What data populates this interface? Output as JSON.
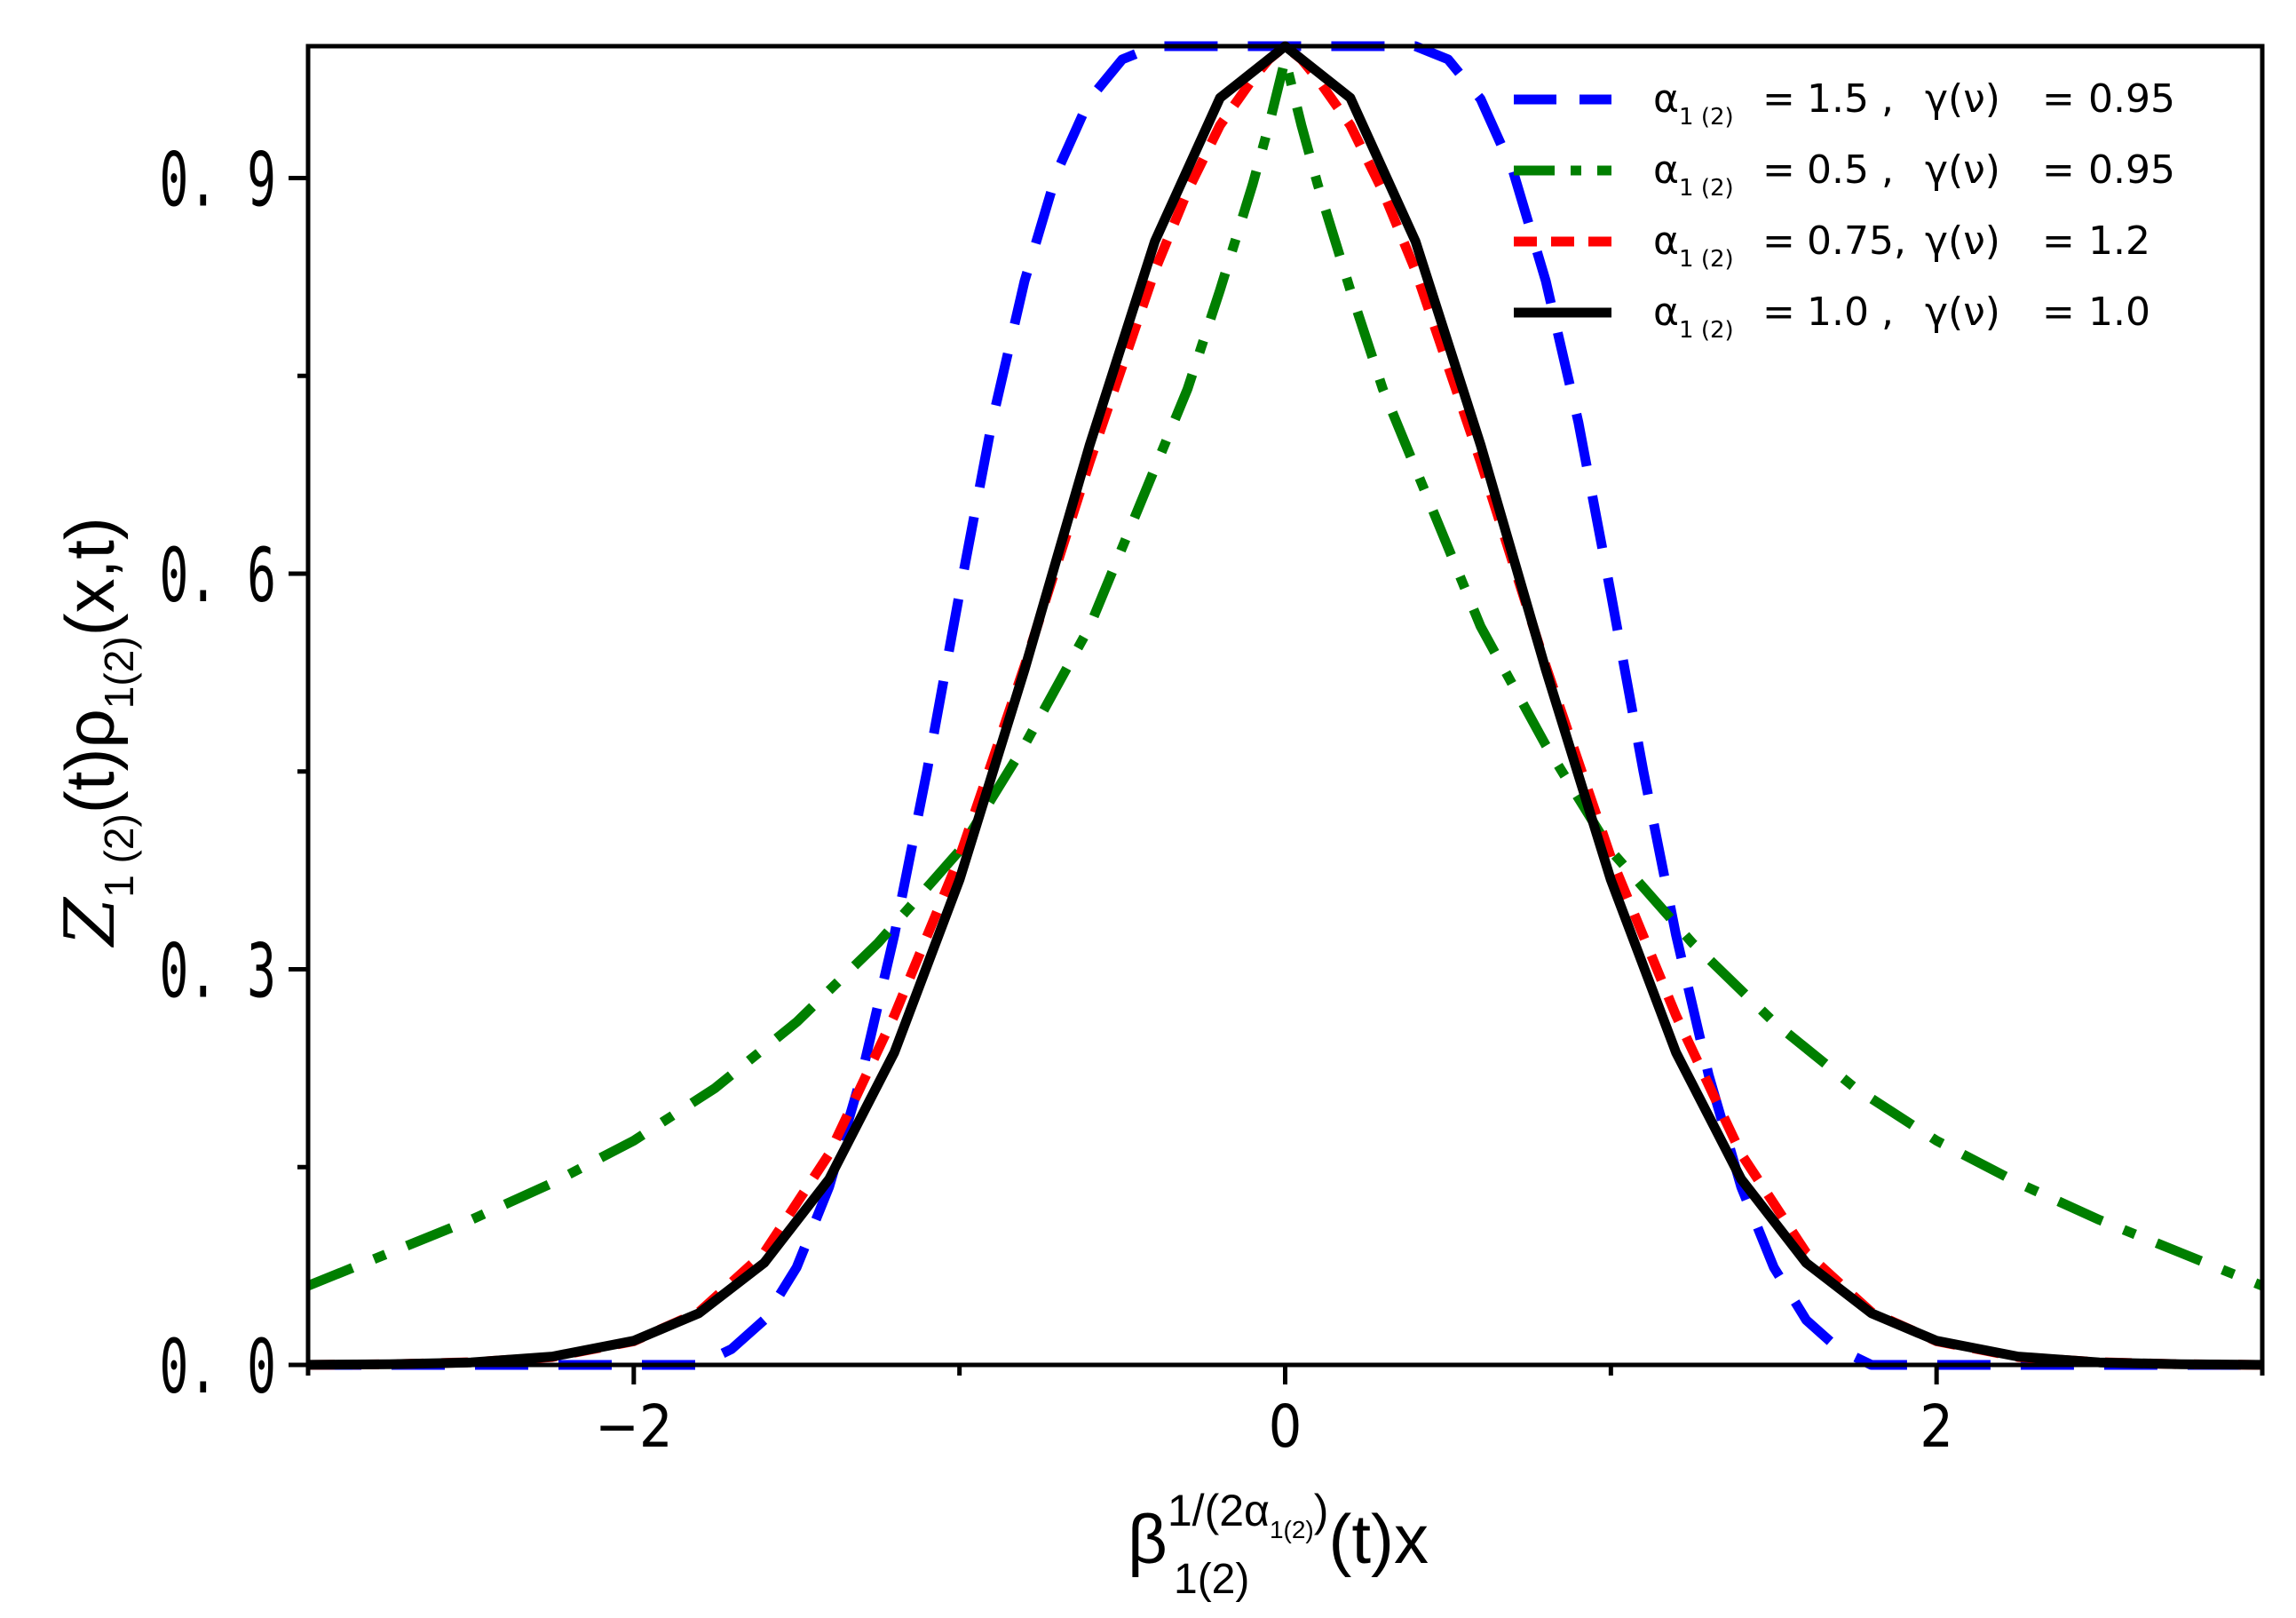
{
  "chart_data": {
    "type": "line",
    "title": "",
    "xlabel": {
      "base": "β",
      "sub": "1(2)",
      "sup_prefix": "1/(2α",
      "sup_sub": "1(2)",
      "sup_suffix": ")",
      "suffix": "(t)x"
    },
    "ylabel": {
      "z": "Z",
      "z_sub": "1 (2)",
      "t": "(t)",
      "rho": "ρ",
      "rho_sub": "1(2)",
      "suffix": "(x,t)"
    },
    "xlim": [
      -3,
      3
    ],
    "ylim": [
      0,
      1.0
    ],
    "x_ticks": [
      {
        "value": -2,
        "label": "−2"
      },
      {
        "value": 0,
        "label": "0"
      },
      {
        "value": 2,
        "label": "2"
      }
    ],
    "y_ticks": [
      {
        "value": 0.0,
        "label": "0. 0"
      },
      {
        "value": 0.3,
        "label": "0. 3"
      },
      {
        "value": 0.6,
        "label": "0. 6"
      },
      {
        "value": 0.9,
        "label": "0. 9"
      }
    ],
    "x_minor_ticks": [
      -3,
      -1,
      1,
      3
    ],
    "y_minor_ticks": [
      0.15,
      0.45,
      0.75
    ],
    "legend_position": "top-right",
    "series": [
      {
        "name": "α 1(2) = 1.5 , γ(ν) = 0.95",
        "alpha_value": "1.5 ,",
        "gamma_value": "0.95",
        "color": "#0000ff",
        "style": "dash",
        "x": [
          -3,
          -2.5,
          -2.0,
          -1.9,
          -1.8,
          -1.7,
          -1.6,
          -1.5,
          -1.4,
          -1.3,
          -1.2,
          -1.1,
          -1.0,
          -0.9,
          -0.8,
          -0.7,
          -0.6,
          -0.5,
          -0.4,
          -0.3,
          -0.2,
          -0.1,
          0,
          0.1,
          0.2,
          0.3,
          0.4,
          0.5,
          0.6,
          0.7,
          0.8,
          0.9,
          1.0,
          1.1,
          1.2,
          1.3,
          1.4,
          1.5,
          1.6,
          1.7,
          1.8,
          1.9,
          2.0,
          2.5,
          3
        ],
        "y": [
          0.0,
          0.0,
          0.0,
          0.0,
          0.0,
          0.012,
          0.034,
          0.074,
          0.135,
          0.22,
          0.326,
          0.45,
          0.585,
          0.715,
          0.822,
          0.905,
          0.96,
          0.99,
          1.0,
          1.0,
          1.0,
          1.0,
          1.0,
          1.0,
          1.0,
          1.0,
          1.0,
          0.99,
          0.96,
          0.905,
          0.822,
          0.715,
          0.585,
          0.45,
          0.326,
          0.22,
          0.135,
          0.074,
          0.034,
          0.012,
          0.0,
          0.0,
          0.0,
          0.0,
          0.0
        ]
      },
      {
        "name": "α 1(2) = 0.5 , γ(ν) = 0.95",
        "alpha_value": "0.5 ,",
        "gamma_value": "0.95",
        "color": "#007f00",
        "style": "dashdot",
        "x": [
          -3,
          -2.75,
          -2.5,
          -2.25,
          -2.0,
          -1.75,
          -1.5,
          -1.25,
          -1.0,
          -0.8,
          -0.6,
          -0.5,
          -0.4,
          -0.3,
          -0.2,
          -0.1,
          -0.05,
          0,
          0.05,
          0.1,
          0.2,
          0.3,
          0.4,
          0.5,
          0.6,
          0.8,
          1.0,
          1.25,
          1.5,
          1.75,
          2.0,
          2.25,
          2.5,
          2.75,
          3
        ],
        "y": [
          0.06,
          0.085,
          0.11,
          0.138,
          0.17,
          0.21,
          0.26,
          0.32,
          0.39,
          0.47,
          0.56,
          0.62,
          0.68,
          0.74,
          0.815,
          0.895,
          0.94,
          0.99,
          0.94,
          0.895,
          0.815,
          0.74,
          0.68,
          0.62,
          0.56,
          0.47,
          0.39,
          0.32,
          0.26,
          0.21,
          0.17,
          0.138,
          0.11,
          0.085,
          0.06
        ]
      },
      {
        "name": "α 1(2) = 0.75, γ(ν) = 1.2",
        "alpha_value": "0.75,",
        "gamma_value": "1.2",
        "color": "#ff0000",
        "style": "shortdash",
        "x": [
          -3,
          -2.75,
          -2.5,
          -2.25,
          -2.0,
          -1.8,
          -1.6,
          -1.4,
          -1.2,
          -1.0,
          -0.8,
          -0.6,
          -0.4,
          -0.3,
          -0.2,
          -0.1,
          -0.05,
          0,
          0.05,
          0.1,
          0.2,
          0.3,
          0.4,
          0.6,
          0.8,
          1.0,
          1.2,
          1.4,
          1.6,
          1.8,
          2.0,
          2.25,
          2.5,
          2.75,
          3
        ],
        "y": [
          0.0,
          0.0005,
          0.002,
          0.006,
          0.018,
          0.04,
          0.085,
          0.16,
          0.265,
          0.385,
          0.53,
          0.685,
          0.83,
          0.89,
          0.94,
          0.975,
          0.99,
          1.0,
          0.99,
          0.975,
          0.94,
          0.89,
          0.83,
          0.685,
          0.53,
          0.385,
          0.265,
          0.16,
          0.085,
          0.04,
          0.018,
          0.006,
          0.002,
          0.0005,
          0.0
        ]
      },
      {
        "name": "α 1(2) = 1.0 , γ(ν) = 1.0",
        "alpha_value": "1.0 ,",
        "gamma_value": "1.0",
        "color": "#000000",
        "style": "solid",
        "x": [
          -3,
          -2.75,
          -2.5,
          -2.25,
          -2.0,
          -1.8,
          -1.6,
          -1.4,
          -1.2,
          -1.0,
          -0.8,
          -0.6,
          -0.4,
          -0.2,
          0,
          0.2,
          0.4,
          0.6,
          0.8,
          1.0,
          1.2,
          1.4,
          1.6,
          1.8,
          2.0,
          2.25,
          2.5,
          2.75,
          3
        ],
        "y": [
          0.0001,
          0.0005,
          0.0019,
          0.0063,
          0.0183,
          0.0392,
          0.0773,
          0.1409,
          0.2369,
          0.3679,
          0.5273,
          0.6977,
          0.8521,
          0.9608,
          1.0,
          0.9608,
          0.8521,
          0.6977,
          0.5273,
          0.3679,
          0.2369,
          0.1409,
          0.0773,
          0.0392,
          0.0183,
          0.0063,
          0.0019,
          0.0005,
          0.0001
        ]
      }
    ],
    "legend_labels": {
      "alpha_symbol": "α",
      "alpha_sub": "1 (2)",
      "eq": "=",
      "gamma_symbol": "γ(ν)"
    }
  }
}
